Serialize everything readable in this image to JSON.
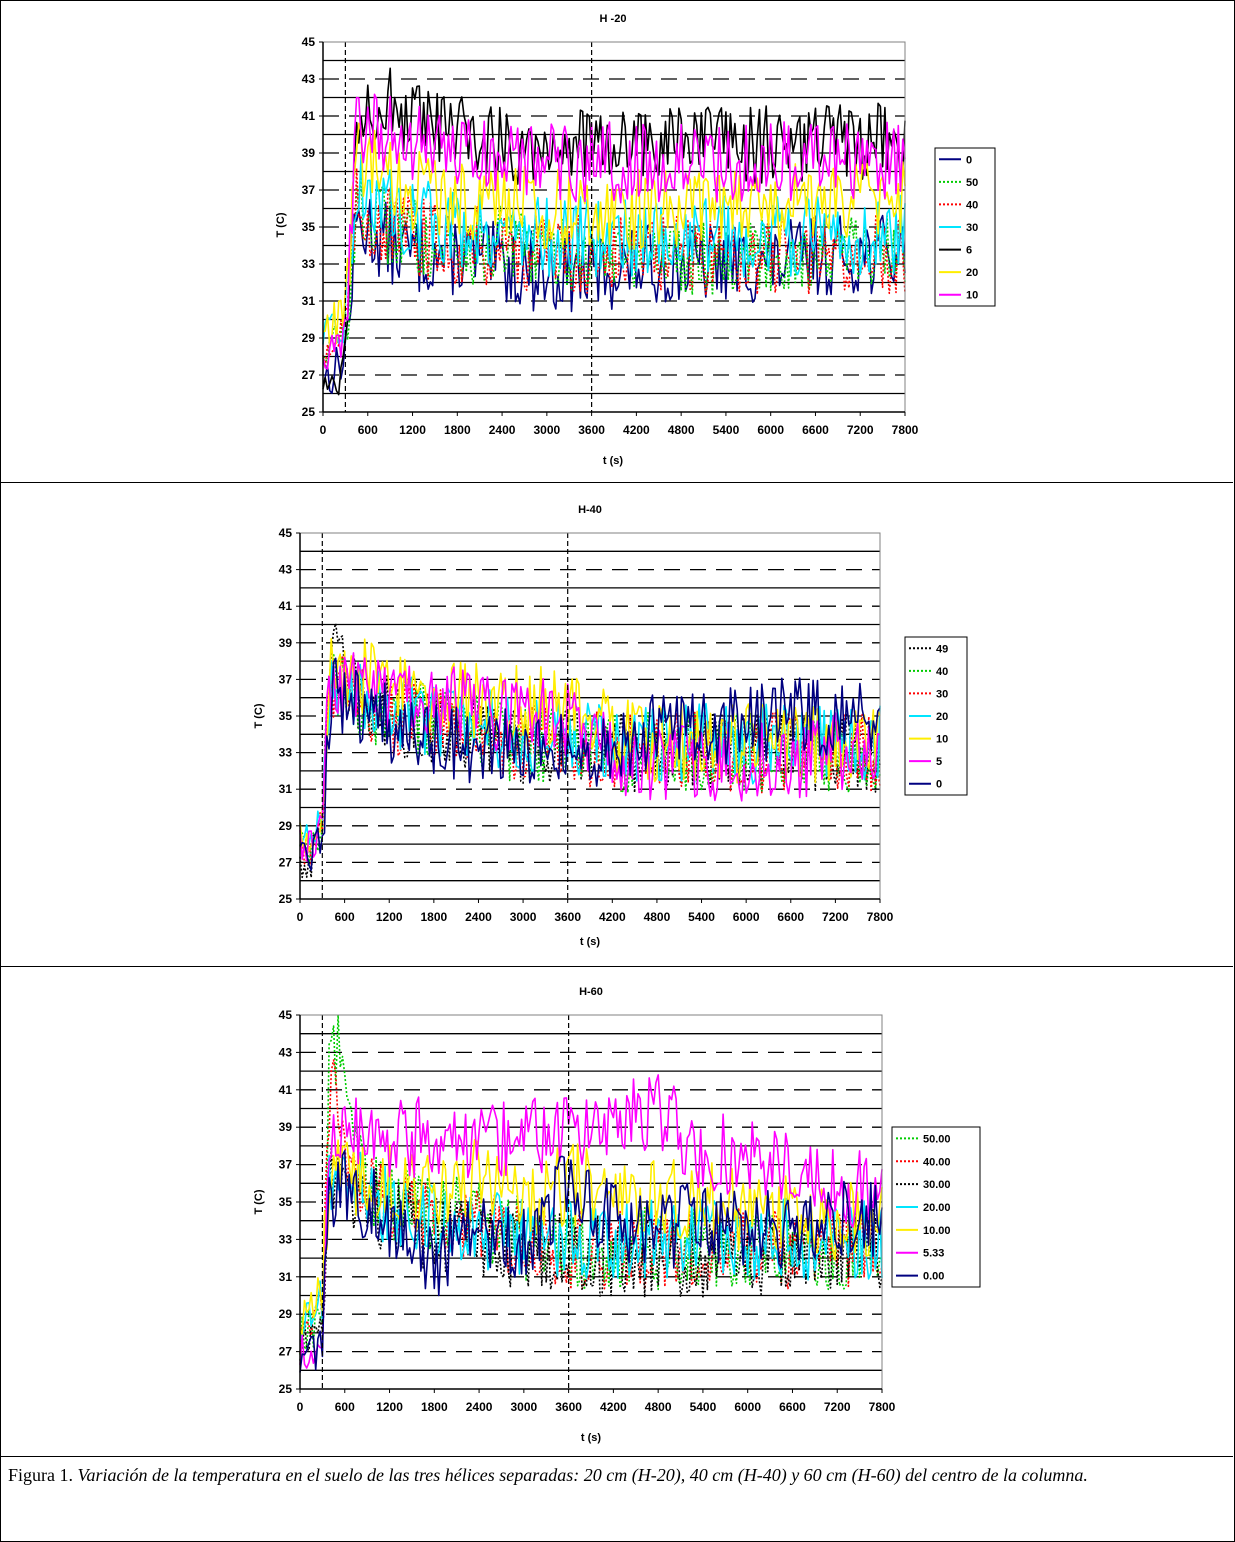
{
  "caption": {
    "prefix": "Figura 1. ",
    "text": "Variación de la temperatura en el suelo de las tres hélices separadas: 20 cm (H-20), 40 cm (H-40) y 60 cm (H-60) del centro de la columna."
  },
  "chart_data": [
    {
      "type": "line",
      "title": "H -20",
      "xlabel": "t (s)",
      "ylabel": "T (C)",
      "xlim": [
        0,
        7800
      ],
      "ylim": [
        25,
        45
      ],
      "xticks": [
        "0",
        "600",
        "1200",
        "1800",
        "2400",
        "3000",
        "3600",
        "4200",
        "4800",
        "5400",
        "6000",
        "6600",
        "7200",
        "7800"
      ],
      "yticks": [
        "25",
        "27",
        "29",
        "31",
        "33",
        "35",
        "37",
        "39",
        "41",
        "43",
        "45"
      ],
      "vlines": [
        300,
        3600
      ],
      "legend_position": "right",
      "series": [
        {
          "name": "0",
          "color": "#000080",
          "style": "solid",
          "x": [
            0,
            100,
            200,
            300,
            450,
            600,
            900,
            1200,
            1800,
            2400,
            3000,
            3600,
            4200,
            4800,
            5400,
            6000,
            6600,
            7200,
            7800
          ],
          "y": [
            27,
            27,
            27.5,
            28,
            35,
            35,
            34,
            33.5,
            33.5,
            33,
            32.5,
            32.5,
            33,
            33,
            33,
            33,
            33.5,
            33.5,
            33.5
          ]
        },
        {
          "name": "50",
          "color": "#00cc00",
          "style": "dotted",
          "x": [
            0,
            100,
            200,
            300,
            450,
            600,
            900,
            1200,
            1800,
            2400,
            3000,
            3600,
            4200,
            4800,
            5400,
            6000,
            6600,
            7200,
            7800
          ],
          "y": [
            28.5,
            28.5,
            29,
            29.5,
            36,
            35.5,
            35,
            34.5,
            34,
            34,
            33.5,
            33.5,
            33.5,
            33.5,
            33.5,
            33.5,
            33.5,
            33.5,
            33.5
          ]
        },
        {
          "name": "40",
          "color": "#ff0000",
          "style": "dotted",
          "x": [
            0,
            100,
            200,
            300,
            450,
            600,
            900,
            1200,
            1800,
            2400,
            3000,
            3600,
            4200,
            4800,
            5400,
            6000,
            6600,
            7200,
            7800
          ],
          "y": [
            28.5,
            28.5,
            29,
            29.5,
            36,
            35.5,
            35,
            34.5,
            34,
            34,
            33.5,
            33.5,
            33.5,
            33.5,
            33.5,
            33.5,
            33.5,
            33.5,
            33.5
          ]
        },
        {
          "name": "30",
          "color": "#00e5ff",
          "style": "solid",
          "x": [
            0,
            100,
            200,
            300,
            450,
            600,
            900,
            1200,
            1800,
            2400,
            3000,
            3600,
            4200,
            4800,
            5400,
            6000,
            6600,
            7200,
            7800
          ],
          "y": [
            29,
            29,
            29.5,
            30,
            37,
            37,
            36,
            35.5,
            35,
            35,
            34.5,
            34.5,
            34.5,
            34.5,
            34.5,
            34.5,
            34.5,
            34.5,
            34.5
          ]
        },
        {
          "name": "6",
          "color": "#000000",
          "style": "solid",
          "x": [
            0,
            100,
            200,
            300,
            450,
            600,
            900,
            1200,
            1800,
            2400,
            3000,
            3600,
            4200,
            4800,
            5400,
            6000,
            6600,
            7200,
            7800
          ],
          "y": [
            26.5,
            26.5,
            27,
            28,
            41,
            42,
            41.5,
            40.5,
            40,
            39.5,
            39.5,
            39.5,
            39.5,
            39.5,
            39.5,
            39.5,
            39.5,
            39.5,
            39.5
          ]
        },
        {
          "name": "20",
          "color": "#ffee00",
          "style": "solid",
          "x": [
            0,
            100,
            200,
            300,
            450,
            600,
            900,
            1200,
            1800,
            2400,
            3000,
            3600,
            4200,
            4800,
            5400,
            6000,
            6600,
            7200,
            7800
          ],
          "y": [
            29.5,
            29.5,
            30,
            30.5,
            38.5,
            38.5,
            37.5,
            37,
            36.5,
            36.5,
            36,
            36,
            36,
            36,
            36,
            36,
            36.5,
            36.5,
            36.5
          ]
        },
        {
          "name": "10",
          "color": "#ff00ff",
          "style": "solid",
          "x": [
            0,
            100,
            200,
            300,
            450,
            600,
            900,
            1200,
            1800,
            2400,
            3000,
            3600,
            4200,
            4800,
            5400,
            6000,
            6600,
            7200,
            7800
          ],
          "y": [
            28,
            28,
            28.5,
            29,
            40.5,
            40.5,
            40,
            39.5,
            39,
            38.5,
            38.5,
            38.5,
            38.5,
            38.5,
            38.5,
            38.5,
            38.5,
            38.5,
            38.5
          ]
        }
      ]
    },
    {
      "type": "line",
      "title": "H-40",
      "xlabel": "t (s)",
      "ylabel": "T (C)",
      "xlim": [
        0,
        7800
      ],
      "ylim": [
        25,
        45
      ],
      "xticks": [
        "0",
        "600",
        "1200",
        "1800",
        "2400",
        "3000",
        "3600",
        "4200",
        "4800",
        "5400",
        "6000",
        "6600",
        "7200",
        "7800"
      ],
      "yticks": [
        "25",
        "27",
        "29",
        "31",
        "33",
        "35",
        "37",
        "39",
        "41",
        "43",
        "45"
      ],
      "vlines": [
        300,
        3600
      ],
      "legend_position": "right",
      "series": [
        {
          "name": "49",
          "color": "#000000",
          "style": "dotted",
          "x": [
            0,
            100,
            200,
            300,
            400,
            600,
            900,
            1200,
            1800,
            2400,
            3000,
            3600,
            4200,
            4800,
            5400,
            6000,
            6600,
            7200,
            7800
          ],
          "y": [
            27,
            27,
            27.5,
            29,
            39.5,
            37,
            35.5,
            35,
            34.5,
            34,
            33.5,
            33.5,
            33,
            33,
            33,
            33,
            33,
            33,
            33
          ]
        },
        {
          "name": "40",
          "color": "#00cc00",
          "style": "dotted",
          "x": [
            0,
            100,
            200,
            300,
            400,
            600,
            900,
            1200,
            1800,
            2400,
            3000,
            3600,
            4200,
            4800,
            5400,
            6000,
            6600,
            7200,
            7800
          ],
          "y": [
            27.5,
            27.5,
            28,
            29,
            37,
            36,
            35.5,
            35,
            34.5,
            34,
            33.5,
            33.5,
            33,
            33,
            33,
            33,
            33,
            33,
            33
          ]
        },
        {
          "name": "30",
          "color": "#ff0000",
          "style": "dotted",
          "x": [
            0,
            100,
            200,
            300,
            400,
            600,
            900,
            1200,
            1800,
            2400,
            3000,
            3600,
            4200,
            4800,
            5400,
            6000,
            6600,
            7200,
            7800
          ],
          "y": [
            27.5,
            27.5,
            28,
            29,
            37,
            36,
            35.5,
            35,
            34.5,
            34,
            33.5,
            33.5,
            33,
            33,
            33,
            33,
            33,
            33,
            33
          ]
        },
        {
          "name": "20",
          "color": "#00e5ff",
          "style": "solid",
          "x": [
            0,
            100,
            200,
            300,
            400,
            600,
            900,
            1200,
            1800,
            2400,
            3000,
            3600,
            4200,
            4800,
            5400,
            6000,
            6600,
            7200,
            7800
          ],
          "y": [
            28,
            28,
            28.5,
            29.5,
            37,
            36.5,
            36,
            35.5,
            35,
            34.5,
            34,
            34,
            33.5,
            33.5,
            33.5,
            33.5,
            33.5,
            33.5,
            33.5
          ]
        },
        {
          "name": "10",
          "color": "#ffee00",
          "style": "solid",
          "x": [
            0,
            100,
            200,
            300,
            400,
            600,
            900,
            1200,
            1800,
            2400,
            3000,
            3600,
            4200,
            4800,
            5400,
            6000,
            6600,
            7200,
            7800
          ],
          "y": [
            28.5,
            28.5,
            29,
            30,
            37.5,
            37.5,
            37,
            36.5,
            36,
            36,
            35.5,
            35.5,
            34,
            33.5,
            33.5,
            33.5,
            33.5,
            33.5,
            33.5
          ]
        },
        {
          "name": "5",
          "color": "#ff00ff",
          "style": "solid",
          "x": [
            0,
            100,
            200,
            300,
            400,
            600,
            900,
            1200,
            1800,
            2400,
            3000,
            3600,
            4200,
            4800,
            5400,
            6000,
            6600,
            7200,
            7800
          ],
          "y": [
            28,
            28,
            28.5,
            29.5,
            37,
            37,
            36.5,
            36,
            35.5,
            35.5,
            35,
            35,
            33,
            32.5,
            32.5,
            32.5,
            32.5,
            33,
            33
          ]
        },
        {
          "name": "0",
          "color": "#000080",
          "style": "solid",
          "x": [
            0,
            100,
            200,
            300,
            400,
            600,
            900,
            1200,
            1800,
            2400,
            3000,
            3600,
            4200,
            4800,
            5400,
            6000,
            6600,
            7200,
            7800
          ],
          "y": [
            27,
            27,
            27.5,
            28.5,
            36,
            36,
            35,
            34.5,
            33.5,
            33.5,
            33,
            33,
            33.5,
            34,
            34.5,
            34.5,
            35,
            35,
            35
          ]
        }
      ]
    },
    {
      "type": "line",
      "title": "H-60",
      "xlabel": "t (s)",
      "ylabel": "T (C)",
      "xlim": [
        0,
        7800
      ],
      "ylim": [
        25,
        45
      ],
      "xticks": [
        "0",
        "600",
        "1200",
        "1800",
        "2400",
        "3000",
        "3600",
        "4200",
        "4800",
        "5400",
        "6000",
        "6600",
        "7200",
        "7800"
      ],
      "yticks": [
        "25",
        "27",
        "29",
        "31",
        "33",
        "35",
        "37",
        "39",
        "41",
        "43",
        "45"
      ],
      "vlines": [
        300,
        3600
      ],
      "legend_position": "right",
      "series": [
        {
          "name": "50.00",
          "color": "#00cc00",
          "style": "dotted",
          "x": [
            0,
            100,
            200,
            300,
            400,
            500,
            600,
            900,
            1200,
            1800,
            2400,
            3000,
            3600,
            4200,
            4800,
            5400,
            6000,
            6600,
            7200,
            7800
          ],
          "y": [
            28,
            28,
            28.5,
            30,
            43,
            43.5,
            41,
            36,
            35,
            34.5,
            34,
            33,
            32.5,
            32.5,
            32.5,
            32.5,
            32.5,
            32.5,
            32.5,
            32.5
          ]
        },
        {
          "name": "40.00",
          "color": "#ff0000",
          "style": "dotted",
          "x": [
            0,
            100,
            200,
            300,
            400,
            500,
            600,
            900,
            1200,
            1800,
            2400,
            3000,
            3600,
            4200,
            4800,
            5400,
            6000,
            6600,
            7200,
            7800
          ],
          "y": [
            28,
            28,
            28.5,
            30,
            41,
            40,
            37.5,
            35.5,
            34.5,
            34,
            33.5,
            33,
            32.5,
            32.5,
            32.5,
            32.5,
            32.5,
            32.5,
            32.5,
            32.5
          ]
        },
        {
          "name": "30.00",
          "color": "#000000",
          "style": "dotted",
          "x": [
            0,
            100,
            200,
            300,
            400,
            500,
            600,
            900,
            1200,
            1800,
            2400,
            3000,
            3600,
            4200,
            4800,
            5400,
            6000,
            6600,
            7200,
            7800
          ],
          "y": [
            27.5,
            27.5,
            28,
            29.5,
            36,
            36,
            35.5,
            35,
            34,
            33.5,
            33,
            32.5,
            32.5,
            32,
            32,
            32,
            32,
            32.5,
            32.5,
            32.5
          ]
        },
        {
          "name": "20.00",
          "color": "#00e5ff",
          "style": "solid",
          "x": [
            0,
            100,
            200,
            300,
            400,
            500,
            600,
            900,
            1200,
            1800,
            2400,
            3000,
            3600,
            4200,
            4800,
            5400,
            6000,
            6600,
            7200,
            7800
          ],
          "y": [
            28.5,
            28.5,
            29,
            30,
            36.5,
            36.5,
            36,
            35.5,
            34.5,
            34,
            33.5,
            33,
            33,
            33,
            33,
            33,
            33,
            33,
            33,
            33
          ]
        },
        {
          "name": "10.00",
          "color": "#ffee00",
          "style": "solid",
          "x": [
            0,
            100,
            200,
            300,
            400,
            500,
            600,
            900,
            1200,
            1800,
            2400,
            3000,
            3600,
            4200,
            4800,
            5400,
            6000,
            6600,
            7200,
            7800
          ],
          "y": [
            29,
            29,
            29.5,
            30.5,
            37,
            37,
            36.5,
            36,
            36,
            35.5,
            36.5,
            35,
            36,
            35.5,
            35.5,
            35,
            34.5,
            34.5,
            34,
            34
          ]
        },
        {
          "name": "5.33",
          "color": "#ff00ff",
          "style": "solid",
          "x": [
            0,
            100,
            200,
            300,
            400,
            500,
            600,
            900,
            1200,
            1800,
            2400,
            3000,
            3600,
            4200,
            4800,
            5400,
            6000,
            6600,
            7200,
            7800
          ],
          "y": [
            27,
            27,
            27.5,
            28.5,
            38,
            38.5,
            38.5,
            39,
            38.5,
            38.5,
            38.5,
            38.5,
            38.5,
            39,
            40,
            37.5,
            37.5,
            37,
            36,
            35.5
          ]
        },
        {
          "name": "0.00",
          "color": "#000080",
          "style": "solid",
          "x": [
            0,
            100,
            200,
            300,
            400,
            500,
            600,
            900,
            1200,
            1800,
            2400,
            3000,
            3600,
            4200,
            4800,
            5400,
            6000,
            6600,
            7200,
            7800
          ],
          "y": [
            26.5,
            26.5,
            27,
            28,
            35.5,
            36,
            36,
            35,
            34,
            32,
            33.5,
            33,
            36,
            34,
            33.5,
            34,
            33.5,
            33.5,
            34,
            34
          ]
        }
      ]
    }
  ]
}
